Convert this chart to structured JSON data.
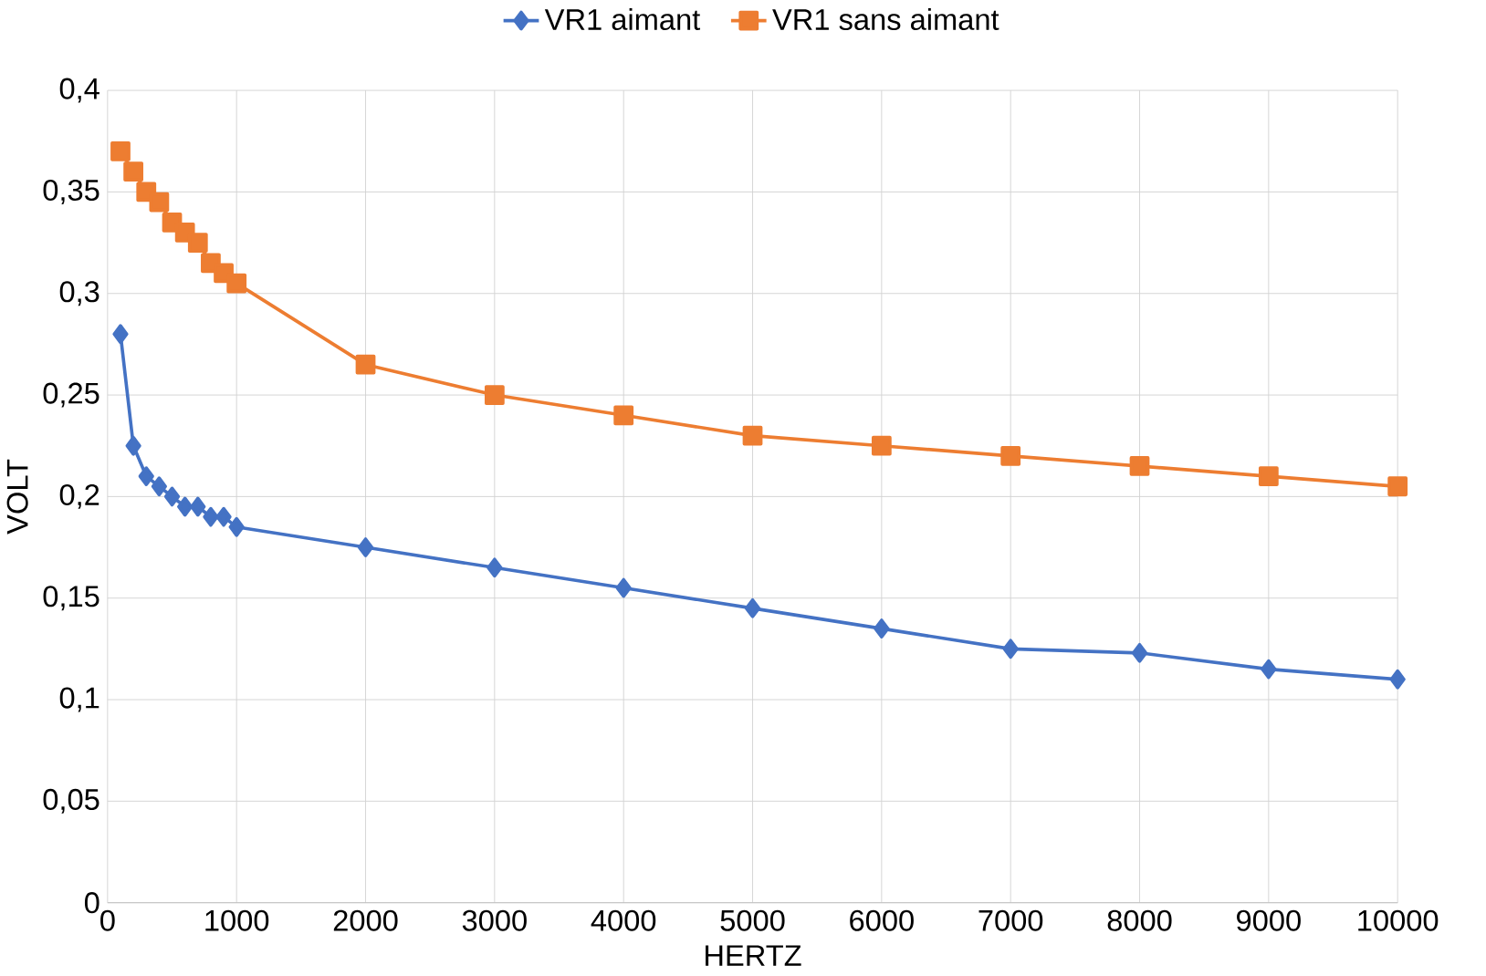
{
  "chart_data": {
    "type": "line",
    "xlabel": "HERTZ",
    "ylabel": "VOLT",
    "xlim": [
      0,
      10000
    ],
    "xticks": [
      0,
      1000,
      2000,
      3000,
      4000,
      5000,
      6000,
      7000,
      8000,
      9000,
      10000
    ],
    "ylim": [
      0,
      0.4
    ],
    "yticks": [
      {
        "value": 0,
        "label": "0"
      },
      {
        "value": 0.05,
        "label": "0,05"
      },
      {
        "value": 0.1,
        "label": "0,1"
      },
      {
        "value": 0.15,
        "label": "0,15"
      },
      {
        "value": 0.2,
        "label": "0,2"
      },
      {
        "value": 0.25,
        "label": "0,25"
      },
      {
        "value": 0.3,
        "label": "0,3"
      },
      {
        "value": 0.35,
        "label": "0,35"
      },
      {
        "value": 0.4,
        "label": "0,4"
      }
    ],
    "grid": true,
    "legend": "top",
    "x": [
      100,
      200,
      300,
      400,
      500,
      600,
      700,
      800,
      900,
      1000,
      2000,
      3000,
      4000,
      5000,
      6000,
      7000,
      8000,
      9000,
      10000
    ],
    "series": [
      {
        "name": "VR1 aimant",
        "color": "#4472c4",
        "marker": "diamond",
        "values": [
          0.28,
          0.225,
          0.21,
          0.205,
          0.2,
          0.195,
          0.195,
          0.19,
          0.19,
          0.185,
          0.175,
          0.165,
          0.155,
          0.145,
          0.135,
          0.125,
          0.123,
          0.115,
          0.11
        ]
      },
      {
        "name": "VR1 sans aimant",
        "color": "#ed7d31",
        "marker": "square",
        "values": [
          0.37,
          0.36,
          0.35,
          0.345,
          0.335,
          0.33,
          0.325,
          0.315,
          0.31,
          0.305,
          0.265,
          0.25,
          0.24,
          0.23,
          0.225,
          0.22,
          0.215,
          0.21,
          0.205
        ]
      }
    ]
  }
}
